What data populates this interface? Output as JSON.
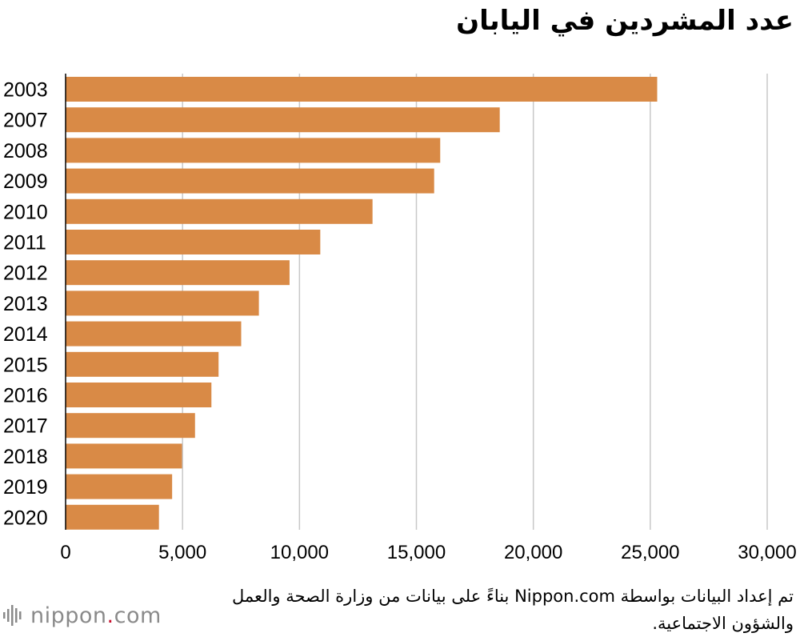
{
  "chart_data": {
    "type": "bar",
    "orientation": "horizontal",
    "title": "عدد المشردين في اليابان",
    "categories": [
      "2003",
      "2007",
      "2008",
      "2009",
      "2010",
      "2011",
      "2012",
      "2013",
      "2014",
      "2015",
      "2016",
      "2017",
      "2018",
      "2019",
      "2020"
    ],
    "values": [
      25296,
      18564,
      16018,
      15759,
      13124,
      10890,
      9576,
      8265,
      7508,
      6541,
      6235,
      5534,
      4977,
      4555,
      3992
    ],
    "xlim": [
      0,
      30000
    ],
    "xticks": [
      "0",
      "5,000",
      "10,000",
      "15,000",
      "20,000",
      "25,000",
      "30,000"
    ],
    "xtick_values": [
      0,
      5000,
      10000,
      15000,
      20000,
      25000,
      30000
    ],
    "grid": "vertical",
    "bar_color": "#d98a46",
    "grid_color": "#c8c8c8"
  },
  "source_note": "تم إعداد البيانات بواسطة Nippon.com بناءً على بيانات من وزارة الصحة والعمل والشؤون الاجتماعية.",
  "logo": {
    "icon": "sound-wave-icon",
    "name": "nippon",
    "dot": ".",
    "suffix": "com",
    "color": "#8a8a8a",
    "dot_color": "#c8102e"
  }
}
